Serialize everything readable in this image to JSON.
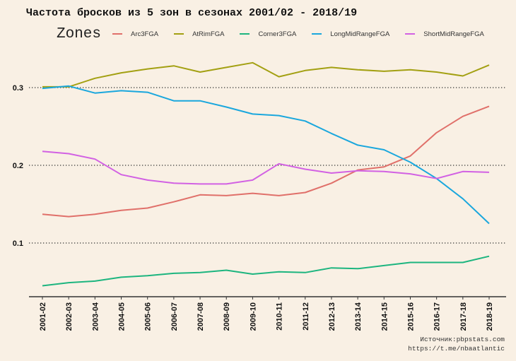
{
  "chart_data": {
    "type": "line",
    "title": "Частота бросков из 5 зон в сезонах 2001/02 - 2018/19",
    "xlabel": "",
    "ylabel": "",
    "legend_title": "Zones",
    "legend_position": "top",
    "grid": "horizontal-dotted",
    "ylim": [
      0.033,
      0.338
    ],
    "yticks": [
      0.1,
      0.2,
      0.3
    ],
    "ytick_labels": [
      "0.1",
      "0.2",
      "0.3"
    ],
    "categories": [
      "2001-02",
      "2002-03",
      "2003-04",
      "2004-05",
      "2005-06",
      "2006-07",
      "2007-08",
      "2008-09",
      "2009-10",
      "2010-11",
      "2011-12",
      "2012-13",
      "2013-14",
      "2014-15",
      "2015-16",
      "2016-17",
      "2017-18",
      "2018-19"
    ],
    "series": [
      {
        "name": "Arc3FGA",
        "color": "#e0706a",
        "values": [
          0.137,
          0.134,
          0.137,
          0.142,
          0.145,
          0.153,
          0.162,
          0.161,
          0.164,
          0.161,
          0.165,
          0.177,
          0.194,
          0.198,
          0.212,
          0.242,
          0.263,
          0.276
        ]
      },
      {
        "name": "AtRimFGA",
        "color": "#a3a012",
        "values": [
          0.301,
          0.301,
          0.312,
          0.319,
          0.324,
          0.328,
          0.32,
          0.326,
          0.332,
          0.314,
          0.322,
          0.326,
          0.323,
          0.321,
          0.323,
          0.32,
          0.315,
          0.329
        ]
      },
      {
        "name": "Corner3FGA",
        "color": "#1db57f",
        "values": [
          0.045,
          0.049,
          0.051,
          0.056,
          0.058,
          0.061,
          0.062,
          0.065,
          0.06,
          0.063,
          0.062,
          0.068,
          0.067,
          0.071,
          0.075,
          0.075,
          0.075,
          0.083
        ]
      },
      {
        "name": "LongMidRangeFGA",
        "color": "#1aa7dd",
        "values": [
          0.299,
          0.302,
          0.293,
          0.296,
          0.294,
          0.283,
          0.283,
          0.275,
          0.266,
          0.264,
          0.257,
          0.241,
          0.226,
          0.22,
          0.204,
          0.183,
          0.157,
          0.125
        ]
      },
      {
        "name": "ShortMidRangeFGA",
        "color": "#d261e3",
        "values": [
          0.218,
          0.215,
          0.208,
          0.188,
          0.181,
          0.177,
          0.176,
          0.176,
          0.181,
          0.202,
          0.195,
          0.19,
          0.193,
          0.192,
          0.189,
          0.183,
          0.192,
          0.191
        ]
      }
    ]
  },
  "source": {
    "line1": "Источник:pbpstats.com",
    "line2": "https://t.me/nbaatlantic"
  }
}
